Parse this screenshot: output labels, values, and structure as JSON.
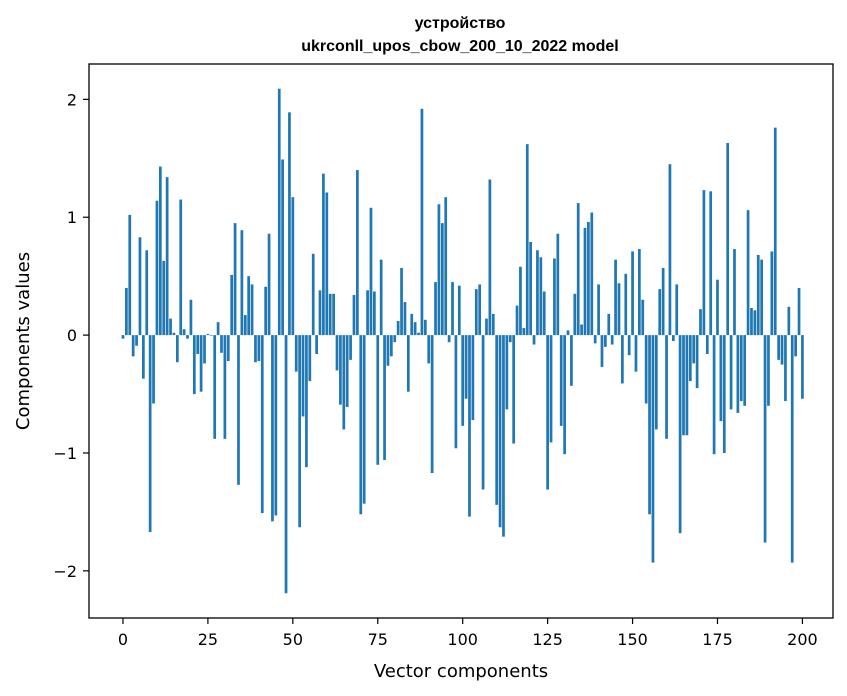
{
  "chart_data": {
    "type": "bar",
    "title": "устройство",
    "subtitle": "ukrconll_upos_cbow_200_10_2022 model",
    "xlabel": "Vector components",
    "ylabel": "Components values",
    "xlim": [
      -10,
      209
    ],
    "ylim": [
      -2.4,
      2.3
    ],
    "xticks": [
      0,
      25,
      50,
      75,
      100,
      125,
      150,
      175,
      200
    ],
    "yticks": [
      -2,
      -1,
      0,
      1,
      2
    ],
    "ytick_labels": [
      "−2",
      "−1",
      "0",
      "1",
      "2"
    ],
    "grid": false,
    "color": "#1f77b4",
    "series": [
      {
        "values": [
          -0.03,
          0.4,
          1.02,
          -0.18,
          -0.09,
          0.83,
          -0.37,
          0.72,
          -1.67,
          -0.58,
          1.14,
          1.43,
          0.63,
          1.34,
          0.14,
          0.02,
          -0.23,
          1.15,
          0.05,
          -0.03,
          0.3,
          -0.5,
          -0.16,
          -0.48,
          -0.24,
          0.01,
          0.0,
          -0.88,
          0.11,
          -0.15,
          -0.88,
          -0.22,
          0.51,
          0.95,
          -1.27,
          0.89,
          0.17,
          0.5,
          0.43,
          -0.23,
          -0.22,
          -1.51,
          0.41,
          0.86,
          -1.58,
          -1.53,
          2.09,
          1.49,
          -2.19,
          1.89,
          1.17,
          -0.31,
          -1.63,
          -0.69,
          -1.12,
          -0.39,
          0.69,
          -0.16,
          0.38,
          1.37,
          1.21,
          0.35,
          0.35,
          -0.3,
          -0.59,
          -0.8,
          -0.61,
          -0.21,
          0.34,
          1.4,
          -1.52,
          -1.43,
          0.38,
          1.08,
          0.37,
          -1.1,
          0.64,
          -1.06,
          -0.26,
          -0.18,
          -0.06,
          0.12,
          0.57,
          0.28,
          -0.48,
          0.18,
          0.11,
          0.02,
          1.92,
          0.13,
          -0.24,
          -1.17,
          0.45,
          1.11,
          0.95,
          1.17,
          -0.06,
          0.45,
          -0.96,
          0.42,
          -0.77,
          -0.54,
          -1.54,
          -0.72,
          0.39,
          0.43,
          -1.31,
          0.14,
          1.32,
          0.18,
          -1.44,
          -1.63,
          -1.71,
          -0.63,
          -0.06,
          -0.92,
          0.25,
          0.58,
          0.06,
          1.62,
          0.79,
          -0.08,
          0.72,
          0.66,
          0.37,
          -1.31,
          -0.91,
          0.65,
          0.86,
          -0.77,
          -1.01,
          0.04,
          -0.43,
          0.35,
          1.12,
          0.09,
          0.91,
          0.96,
          1.04,
          -0.07,
          0.43,
          -0.27,
          -0.1,
          0.18,
          -0.08,
          0.64,
          0.44,
          -0.41,
          0.52,
          -0.17,
          0.71,
          -0.31,
          0.73,
          0.3,
          -0.58,
          -1.52,
          -1.93,
          -0.8,
          0.39,
          0.57,
          -0.88,
          1.45,
          -0.05,
          0.43,
          -1.68,
          -0.85,
          -0.85,
          -0.39,
          -0.24,
          -0.45,
          0.22,
          1.23,
          -0.16,
          1.22,
          -1.01,
          0.47,
          -0.73,
          -1.0,
          1.63,
          -0.63,
          0.73,
          -0.66,
          -0.56,
          -0.6,
          1.06,
          0.23,
          0.21,
          0.68,
          0.64,
          -1.76,
          -0.6,
          0.71,
          1.76,
          -0.21,
          -0.25,
          -0.56,
          0.24,
          -1.93,
          -0.18,
          0.4,
          -0.54
        ]
      }
    ]
  }
}
